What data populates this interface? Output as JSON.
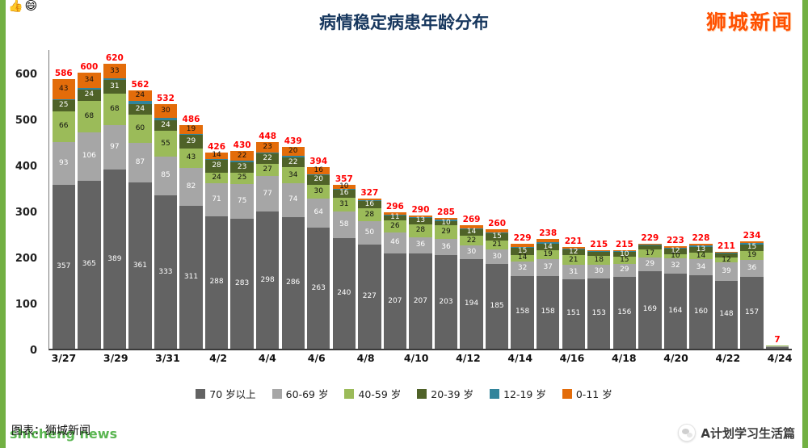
{
  "page": {
    "title": "病情稳定病患年龄分布",
    "logo": "狮城新闻",
    "corner_emojis": "👍😄"
  },
  "footer": {
    "credit": "图表：狮城新闻",
    "watermark": "shicheng news",
    "account_name": "A计划学习生活篇"
  },
  "chart_data": {
    "type": "bar",
    "stacked": true,
    "title": "病情稳定病患年龄分布",
    "x": [
      "3/27",
      "3/28",
      "3/29",
      "3/30",
      "3/31",
      "4/1",
      "4/2",
      "4/3",
      "4/4",
      "4/5",
      "4/6",
      "4/7",
      "4/8",
      "4/9",
      "4/10",
      "4/11",
      "4/12",
      "4/13",
      "4/14",
      "4/15",
      "4/16",
      "4/17",
      "4/18",
      "4/19",
      "4/20",
      "4/21",
      "4/22",
      "4/23",
      "4/24"
    ],
    "x_ticks_shown": [
      "3/27",
      "3/29",
      "3/31",
      "4/2",
      "4/4",
      "4/6",
      "4/8",
      "4/10",
      "4/12",
      "4/14",
      "4/16",
      "4/18",
      "4/20",
      "4/22",
      "4/24"
    ],
    "series": [
      {
        "name": "70 岁以上",
        "color": "#636363",
        "label_color": "#ffffff",
        "values": [
          357,
          365,
          389,
          361,
          333,
          311,
          288,
          283,
          298,
          286,
          263,
          240,
          227,
          207,
          207,
          203,
          194,
          185,
          158,
          158,
          151,
          153,
          156,
          169,
          164,
          160,
          148,
          157,
          4
        ]
      },
      {
        "name": "60-69 岁",
        "color": "#a6a6a6",
        "label_color": "#ffffff",
        "values": [
          93,
          106,
          97,
          87,
          85,
          82,
          71,
          75,
          77,
          74,
          64,
          58,
          50,
          46,
          36,
          36,
          30,
          30,
          32,
          37,
          31,
          30,
          29,
          29,
          32,
          34,
          39,
          36,
          2
        ]
      },
      {
        "name": "40-59 岁",
        "color": "#9bbb59",
        "label_color": "#111111",
        "values": [
          66,
          68,
          68,
          60,
          55,
          43,
          24,
          25,
          27,
          34,
          30,
          31,
          28,
          26,
          28,
          29,
          22,
          21,
          14,
          19,
          21,
          18,
          15,
          17,
          10,
          14,
          12,
          19,
          1
        ]
      },
      {
        "name": "20-39 岁",
        "color": "#4f6228",
        "label_color": "#ffffff",
        "values": [
          25,
          24,
          31,
          24,
          24,
          29,
          28,
          23,
          22,
          22,
          20,
          16,
          16,
          11,
          13,
          10,
          14,
          15,
          15,
          14,
          12,
          9,
          10,
          9,
          12,
          13,
          8,
          15,
          0
        ]
      },
      {
        "name": "12-19 岁",
        "color": "#31849b",
        "label_color": "#ffffff",
        "values": [
          2,
          3,
          2,
          6,
          5,
          2,
          1,
          2,
          1,
          3,
          1,
          2,
          2,
          2,
          2,
          2,
          2,
          2,
          3,
          3,
          2,
          2,
          2,
          2,
          2,
          3,
          2,
          3,
          0
        ]
      },
      {
        "name": "0-11 岁",
        "color": "#e36c0a",
        "label_color": "#111111",
        "values": [
          43,
          34,
          33,
          24,
          30,
          19,
          14,
          22,
          23,
          20,
          16,
          10,
          4,
          4,
          4,
          5,
          7,
          7,
          7,
          7,
          4,
          3,
          3,
          3,
          3,
          4,
          2,
          4,
          0
        ]
      }
    ],
    "totals": [
      586,
      600,
      620,
      562,
      532,
      486,
      426,
      430,
      448,
      439,
      394,
      357,
      327,
      296,
      290,
      285,
      269,
      260,
      229,
      238,
      221,
      215,
      215,
      229,
      223,
      228,
      211,
      234,
      7
    ],
    "total_label_color": "#ff0000",
    "ylim": [
      0,
      650
    ],
    "y_ticks": [
      0,
      100,
      200,
      300,
      400,
      500,
      600
    ],
    "grid": false,
    "legend_position": "bottom",
    "xlabel": "",
    "ylabel": ""
  }
}
